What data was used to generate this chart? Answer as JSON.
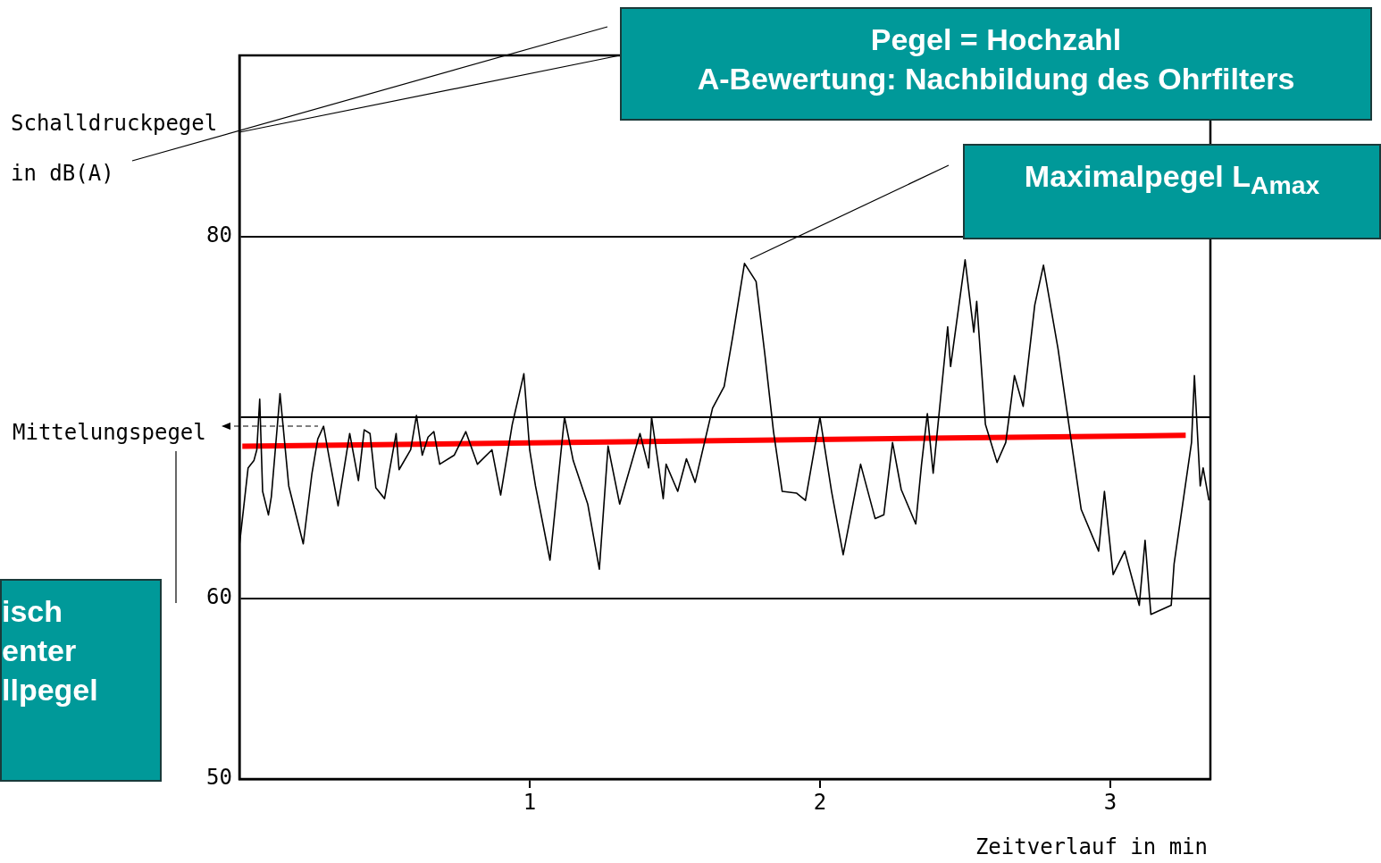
{
  "chart_data": {
    "type": "line",
    "ylabel": "Schalldruckpegel in dB(A)",
    "xlabel": "Zeitverlauf in min",
    "xlim": [
      0,
      3.345
    ],
    "xticks": [
      1,
      2,
      3
    ],
    "ylim": [
      50,
      90
    ],
    "yticks": [
      50,
      60,
      {
        "value": 70,
        "label": null
      },
      80,
      {
        "value": 90,
        "label": null
      }
    ],
    "grid": "y",
    "series": [
      {
        "color": "#000000",
        "x": [
          0,
          0.03,
          0.05,
          0.06,
          0.07,
          0.08,
          0.1,
          0.11,
          0.14,
          0.17,
          0.22,
          0.25,
          0.27,
          0.29,
          0.31,
          0.34,
          0.38,
          0.41,
          0.43,
          0.45,
          0.47,
          0.5,
          0.54,
          0.55,
          0.59,
          0.61,
          0.63,
          0.65,
          0.67,
          0.69,
          0.74,
          0.78,
          0.82,
          0.87,
          0.9,
          0.94,
          0.98,
          1.0,
          1.02,
          1.07,
          1.12,
          1.15,
          1.2,
          1.24,
          1.27,
          1.31,
          1.38,
          1.41,
          1.42,
          1.46,
          1.47,
          1.51,
          1.54,
          1.57,
          1.63,
          1.67,
          1.7,
          1.74,
          1.78,
          1.81,
          1.84,
          1.87,
          1.92,
          1.95,
          2.0,
          2.04,
          2.08,
          2.14,
          2.19,
          2.22,
          2.25,
          2.28,
          2.33,
          2.35,
          2.37,
          2.39,
          2.44,
          2.45,
          2.5,
          2.53,
          2.54,
          2.57,
          2.61,
          2.64,
          2.67,
          2.7,
          2.74,
          2.77,
          2.82,
          2.87,
          2.9,
          2.96,
          2.98,
          3.01,
          3.05,
          3.1,
          3.12,
          3.14,
          3.21,
          3.22,
          3.28,
          3.29,
          3.31,
          3.32,
          3.34
        ],
        "values": [
          62.9,
          67.2,
          67.6,
          68.2,
          71.0,
          65.9,
          64.6,
          65.6,
          71.3,
          66.2,
          63.0,
          66.9,
          68.8,
          69.5,
          67.7,
          65.1,
          69.1,
          66.5,
          69.3,
          69.1,
          66.1,
          65.5,
          69.1,
          67.1,
          68.2,
          70.1,
          67.9,
          68.9,
          69.2,
          67.4,
          67.9,
          69.2,
          67.4,
          68.2,
          65.7,
          69.6,
          72.4,
          68.2,
          66.2,
          62.1,
          70.0,
          67.6,
          65.2,
          61.6,
          68.4,
          65.2,
          69.1,
          67.2,
          70.0,
          65.5,
          67.4,
          65.9,
          67.7,
          66.4,
          70.5,
          71.7,
          74.5,
          78.5,
          77.5,
          73.5,
          69.2,
          65.9,
          65.8,
          65.4,
          70.0,
          65.9,
          62.4,
          67.4,
          64.4,
          64.6,
          68.6,
          66.0,
          64.1,
          67.4,
          70.2,
          66.9,
          75.0,
          72.8,
          78.7,
          74.7,
          76.4,
          69.6,
          67.5,
          68.6,
          72.3,
          70.6,
          76.2,
          78.4,
          73.8,
          68.2,
          64.9,
          62.6,
          65.9,
          61.3,
          62.6,
          59.6,
          63.2,
          59.1,
          59.6,
          61.9,
          68.6,
          72.3,
          66.2,
          67.2,
          65.4
        ]
      },
      {
        "color": "#ff0000",
        "x": [
          0.01,
          3.26
        ],
        "values": [
          68.4,
          69.0
        ]
      }
    ],
    "legend": false,
    "annotations": [
      "Pegel = Hochzahl\nA-Bewertung: Nachbildung des Ohrfilters",
      "Maximalpegel L$_{Amax}$",
      "Mittelungspegel",
      "isch\nenter\nllpegel"
    ]
  }
}
